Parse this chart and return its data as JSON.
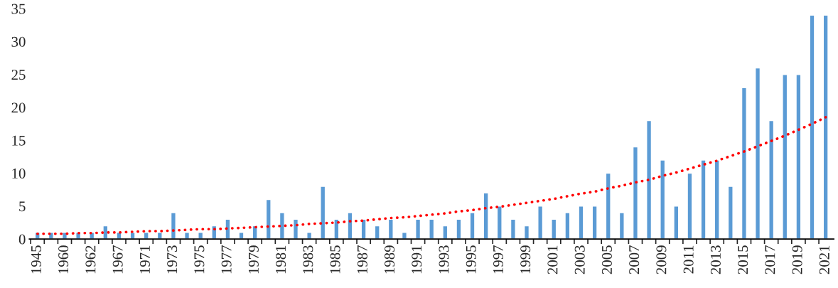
{
  "chart_data": {
    "type": "bar",
    "categories": [
      "1945",
      null,
      "1960",
      null,
      "1962",
      null,
      "1967",
      null,
      "1971",
      null,
      "1973",
      null,
      "1975",
      null,
      "1977",
      null,
      "1979",
      null,
      "1981",
      null,
      "1983",
      null,
      "1985",
      null,
      "1987",
      null,
      "1989",
      null,
      "1991",
      null,
      "1993",
      null,
      "1995",
      null,
      "1997",
      null,
      "1999",
      null,
      "2001",
      null,
      "2003",
      null,
      "2005",
      null,
      "2007",
      null,
      "2009",
      null,
      "2011",
      null,
      "2013",
      null,
      "2015",
      null,
      "2017",
      null,
      "2019",
      null,
      "2021"
    ],
    "series": [
      {
        "color": "#5b9bd5",
        "values": [
          1,
          1,
          1,
          1,
          1,
          2,
          1,
          1,
          1,
          1,
          4,
          1,
          1,
          2,
          3,
          1,
          2,
          6,
          4,
          3,
          1,
          8,
          3,
          4,
          3,
          2,
          3,
          1,
          3,
          3,
          2,
          3,
          4,
          7,
          5,
          3,
          2,
          5,
          3,
          4,
          5,
          5,
          10,
          4,
          14,
          18,
          12,
          5,
          10,
          12,
          12,
          8,
          23,
          26,
          18,
          25,
          25,
          34,
          34
        ]
      },
      {
        "type": "line",
        "color": "#ff0000",
        "line_style": "dotted",
        "marker": "none",
        "values": [
          0.8,
          0.8,
          0.8,
          0.9,
          0.9,
          1.0,
          1.0,
          1.1,
          1.2,
          1.2,
          1.3,
          1.4,
          1.5,
          1.5,
          1.6,
          1.7,
          1.8,
          1.9,
          2.0,
          2.1,
          2.3,
          2.4,
          2.5,
          2.7,
          2.8,
          3.0,
          3.2,
          3.3,
          3.5,
          3.7,
          3.9,
          4.2,
          4.4,
          4.7,
          4.9,
          5.2,
          5.5,
          5.8,
          6.1,
          6.5,
          6.9,
          7.2,
          7.7,
          8.1,
          8.6,
          9.0,
          9.6,
          10.1,
          10.7,
          11.3,
          11.9,
          12.6,
          13.3,
          14.1,
          14.9,
          15.7,
          16.6,
          17.5,
          18.5
        ]
      }
    ],
    "ylim": [
      0,
      35
    ],
    "yticks": [
      0,
      5,
      10,
      15,
      20,
      25,
      30,
      35
    ],
    "grid": false
  }
}
